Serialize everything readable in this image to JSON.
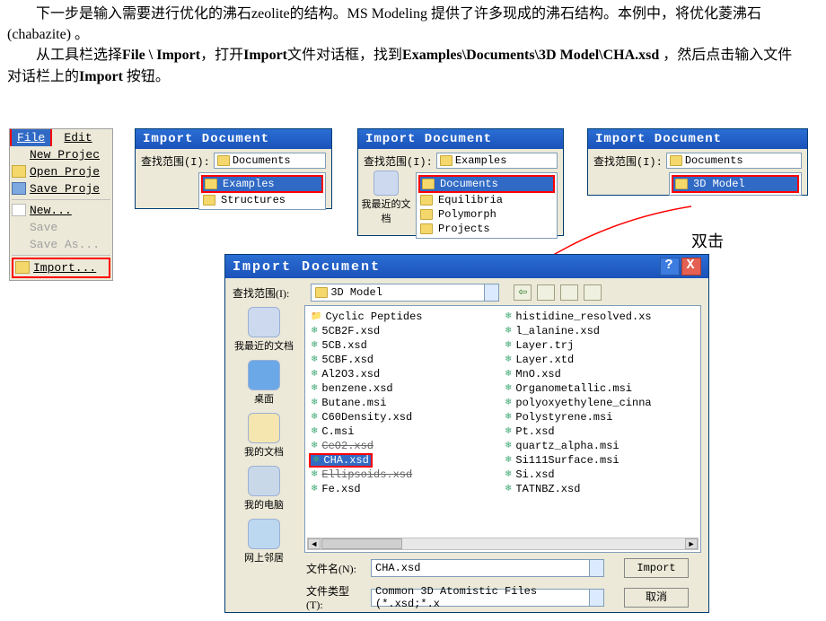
{
  "para1": "　　下一步是输入需要进行优化的沸石zeolite的结构。MS Modeling 提供了许多现成的沸石结构。本例中，将优化菱沸石 (chabazite) 。",
  "para2_pre": "　　从工具栏选择",
  "para2_b1": "File \\ Import",
  "para2_mid1": "，打开",
  "para2_b2": "Import",
  "para2_mid2": "文件对话框，找到",
  "para2_b3": "Examples\\Documents\\3D Model\\CHA.xsd",
  "para2_mid3": " ，然后点击输入文件对话栏上的",
  "para2_b4": "Import",
  "para2_end": " 按钮。",
  "dblclick": "双击",
  "fileMenu": {
    "file": "File",
    "edit": "Edit",
    "items": [
      "New Projec",
      "Open Proje",
      "Save Proje",
      "New...",
      "Save",
      "Save As...",
      "Import..."
    ]
  },
  "panelTitle": "Import Document",
  "lookInLabel": "查找范围(I):",
  "recentLabel": "我最近的文档",
  "p1": {
    "combo": "Documents",
    "items": [
      "Examples",
      "Structures"
    ],
    "selIndex": 0
  },
  "p2": {
    "combo": "Examples",
    "items": [
      "Documents",
      "Equilibria",
      "Polymorph",
      "Projects"
    ],
    "selIndex": 0
  },
  "p3": {
    "combo": "Documents",
    "items": [
      "3D Model"
    ],
    "selIndex": 0
  },
  "dialog": {
    "title": "Import Document",
    "combo": "3D Model",
    "sidebar": [
      "我最近的文档",
      "桌面",
      "我的文档",
      "我的电脑",
      "网上邻居"
    ],
    "col1": [
      "Cyclic Peptides",
      "5CB2F.xsd",
      "5CB.xsd",
      "5CBF.xsd",
      "Al2O3.xsd",
      "benzene.xsd",
      "Butane.msi",
      "C60Density.xsd",
      "C.msi",
      "CeO2.xsd",
      "CHA.xsd",
      "Ellipsoids.xsd",
      "Fe.xsd"
    ],
    "col2": [
      "histidine_resolved.xs",
      "l_alanine.xsd",
      "Layer.trj",
      "Layer.xtd",
      "MnO.xsd",
      "Organometallic.msi",
      "polyoxyethylene_cinna",
      "Polystyrene.msi",
      "Pt.xsd",
      "quartz_alpha.msi",
      "Si111Surface.msi",
      "Si.xsd",
      "TATNBZ.xsd"
    ],
    "selectedFile": "CHA.xsd",
    "fileNameLabel": "文件名(N):",
    "fileNameValue": "CHA.xsd",
    "fileTypeLabel": "文件类型(T):",
    "fileTypeValue": "Common 3D Atomistic Files (*.xsd;*.x",
    "importBtn": "Import",
    "cancelBtn": "取消"
  },
  "colors": {
    "titlebar": "#2a6ed4",
    "highlight": "#ff0000",
    "selection": "#316ac5"
  }
}
